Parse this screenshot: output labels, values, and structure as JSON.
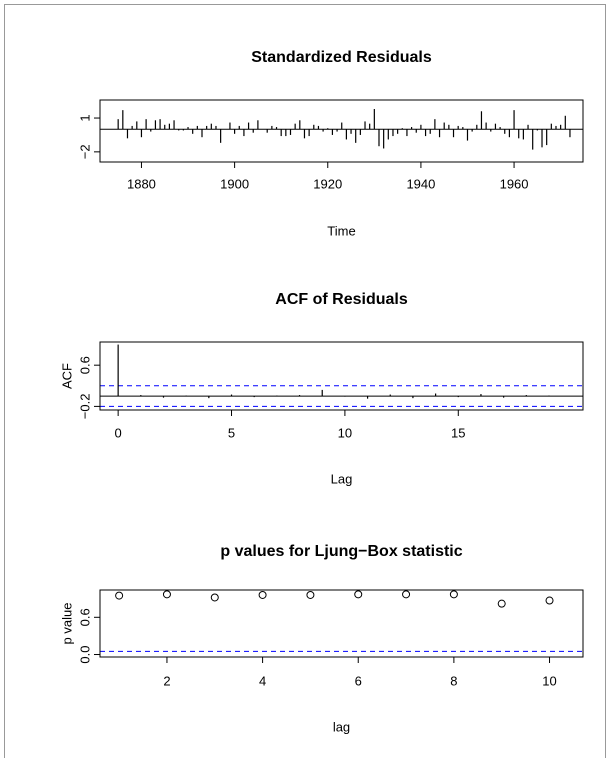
{
  "chart_data": [
    {
      "type": "spike",
      "title": "Standardized Residuals",
      "x_label": "Time",
      "x": [
        1875,
        1876,
        1877,
        1878,
        1879,
        1880,
        1881,
        1882,
        1883,
        1884,
        1885,
        1886,
        1887,
        1888,
        1889,
        1890,
        1891,
        1892,
        1893,
        1894,
        1895,
        1896,
        1897,
        1898,
        1899,
        1900,
        1901,
        1902,
        1903,
        1904,
        1905,
        1906,
        1907,
        1908,
        1909,
        1910,
        1911,
        1912,
        1913,
        1914,
        1915,
        1916,
        1917,
        1918,
        1919,
        1920,
        1921,
        1922,
        1923,
        1924,
        1925,
        1926,
        1927,
        1928,
        1929,
        1930,
        1931,
        1932,
        1933,
        1934,
        1935,
        1936,
        1937,
        1938,
        1939,
        1940,
        1941,
        1942,
        1943,
        1944,
        1945,
        1946,
        1947,
        1948,
        1949,
        1950,
        1951,
        1952,
        1953,
        1954,
        1955,
        1956,
        1957,
        1958,
        1959,
        1960,
        1961,
        1962,
        1963,
        1964,
        1965,
        1966,
        1967,
        1968,
        1969,
        1970,
        1971,
        1972
      ],
      "values": [
        0.9,
        1.7,
        -0.8,
        0.3,
        0.7,
        -0.7,
        0.9,
        -0.2,
        0.8,
        0.9,
        0.4,
        0.5,
        0.8,
        -0.1,
        -0.1,
        0.2,
        -0.4,
        0.3,
        -0.7,
        0.3,
        0.5,
        0.3,
        -1.2,
        0.0,
        0.6,
        -0.4,
        0.3,
        -0.6,
        0.6,
        -0.3,
        0.8,
        0.0,
        -0.3,
        0.3,
        0.2,
        -0.6,
        -0.6,
        -0.5,
        0.5,
        0.8,
        -0.8,
        -0.6,
        0.4,
        0.3,
        -0.2,
        0.1,
        -0.5,
        -0.2,
        0.6,
        -0.9,
        -0.4,
        -1.2,
        -0.5,
        0.7,
        0.5,
        1.8,
        -1.5,
        -1.7,
        -0.9,
        -0.6,
        -0.4,
        0.1,
        -0.6,
        0.2,
        -0.3,
        0.4,
        -0.6,
        -0.4,
        0.9,
        -0.7,
        0.6,
        0.4,
        -0.7,
        0.3,
        0.2,
        -1.0,
        -0.2,
        0.4,
        1.6,
        0.6,
        -0.2,
        0.5,
        0.2,
        -0.4,
        -0.7,
        1.7,
        -0.8,
        -0.9,
        0.4,
        -1.8,
        -0.1,
        -1.6,
        -1.4,
        0.5,
        0.3,
        0.4,
        1.2,
        -0.7
      ],
      "color": "#000000",
      "xlim": [
        1871.1,
        1974.8
      ],
      "xticks": [
        1880,
        1900,
        1920,
        1940,
        1960
      ],
      "ylim": [
        -2.9,
        2.6
      ],
      "yticks": [
        {
          "value": -2,
          "label": "−2"
        },
        1
      ],
      "hlines": [
        {
          "value": 0,
          "color": "#000000",
          "dashed": false
        }
      ]
    },
    {
      "type": "spike",
      "title": "ACF of Residuals",
      "x_label": "Lag",
      "y_label": "ACF",
      "x": [
        0,
        1,
        2,
        3,
        4,
        5,
        6,
        7,
        8,
        9,
        10,
        11,
        12,
        13,
        14,
        15,
        16,
        17,
        18,
        19
      ],
      "values": [
        1,
        0.02,
        -0.03,
        0.01,
        -0.04,
        0.03,
        -0.02,
        0.01,
        0.02,
        0.12,
        -0.01,
        -0.05,
        0.03,
        -0.04,
        0.05,
        -0.02,
        0.04,
        -0.03,
        0.02,
        0.01
      ],
      "color": "#000000",
      "xlim": [
        -0.8,
        20.5
      ],
      "xticks": [
        0,
        5,
        10,
        15
      ],
      "ylim": [
        -0.27,
        1.05
      ],
      "yticks": [
        {
          "value": -0.2,
          "label": "−0.2"
        },
        0.6
      ],
      "hlines": [
        {
          "value": 0,
          "color": "#000000",
          "dashed": false
        },
        {
          "value": 0.2,
          "color": "#0000ff",
          "dashed": true
        },
        {
          "value": -0.2,
          "color": "#0000ff",
          "dashed": true
        }
      ]
    },
    {
      "type": "scatter",
      "title": "p values for Ljung−Box statistic",
      "x_label": "lag",
      "y_label": "p value",
      "x": [
        1,
        2,
        3,
        4,
        5,
        6,
        7,
        8,
        9,
        10
      ],
      "values": [
        0.95,
        0.97,
        0.92,
        0.96,
        0.96,
        0.97,
        0.97,
        0.97,
        0.82,
        0.87
      ],
      "color": "#000000",
      "xlim": [
        0.6,
        10.7
      ],
      "xticks": [
        2,
        4,
        6,
        8,
        10
      ],
      "ylim": [
        -0.04,
        1.04
      ],
      "yticks": [
        {
          "value": 0,
          "label": "0.0"
        },
        0.6
      ],
      "hlines": [
        {
          "value": 0.05,
          "color": "#0000ff",
          "dashed": true
        }
      ]
    }
  ]
}
